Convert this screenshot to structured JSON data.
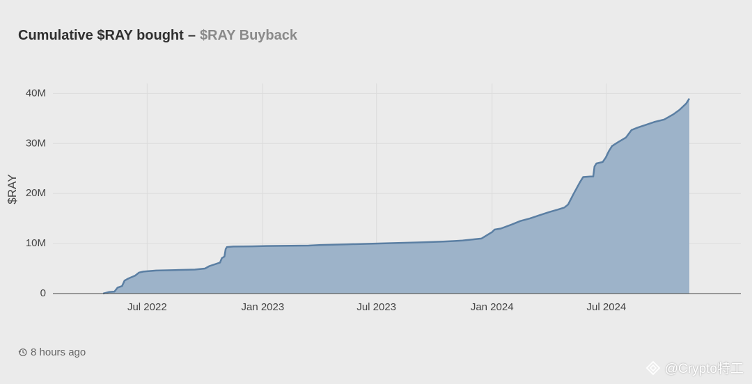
{
  "header": {
    "title": "Cumulative $RAY bought",
    "separator": "–",
    "subtitle": "$RAY Buyback"
  },
  "footer": {
    "updated_text": "8 hours ago",
    "icon": "history-clock-icon"
  },
  "watermark": {
    "text": "@Crypto特工",
    "icon": "diamond-logo-icon"
  },
  "colors": {
    "line": "#5b7fa3",
    "fill": "#9db3c9",
    "grid": "#dcdcdc",
    "axis": "#444444"
  },
  "chart_data": {
    "type": "area",
    "title": "Cumulative $RAY bought",
    "subtitle": "$RAY Buyback",
    "ylabel": "$RAY",
    "xlabel": "",
    "ylim": [
      0,
      42000000
    ],
    "y_ticks": [
      {
        "value": 0,
        "label": "0"
      },
      {
        "value": 10000000,
        "label": "10M"
      },
      {
        "value": 20000000,
        "label": "20M"
      },
      {
        "value": 30000000,
        "label": "30M"
      },
      {
        "value": 40000000,
        "label": "40M"
      }
    ],
    "xlim": [
      "2022-02-01",
      "2025-01-31"
    ],
    "x_ticks": [
      {
        "value": "2022-07-01",
        "label": "Jul 2022"
      },
      {
        "value": "2023-01-01",
        "label": "Jan 2023"
      },
      {
        "value": "2023-07-01",
        "label": "Jul 2023"
      },
      {
        "value": "2024-01-01",
        "label": "Jan 2024"
      },
      {
        "value": "2024-07-01",
        "label": "Jul 2024"
      }
    ],
    "grid": true,
    "legend": "none",
    "series": [
      {
        "x": [
          "2022-04-22",
          "2022-05-01",
          "2022-05-10",
          "2022-05-15",
          "2022-05-22",
          "2022-05-26",
          "2022-06-01",
          "2022-06-12",
          "2022-06-18",
          "2022-06-25",
          "2022-07-15",
          "2022-08-15",
          "2022-09-15",
          "2022-10-01",
          "2022-10-08",
          "2022-10-25",
          "2022-10-28",
          "2022-11-01",
          "2022-11-03",
          "2022-11-05",
          "2022-11-15",
          "2022-12-15",
          "2023-01-01",
          "2023-02-15",
          "2023-03-15",
          "2023-04-01",
          "2023-05-15",
          "2023-06-15",
          "2023-07-15",
          "2023-08-15",
          "2023-09-15",
          "2023-10-15",
          "2023-11-01",
          "2023-11-15",
          "2023-12-15",
          "2024-01-01",
          "2024-01-05",
          "2024-01-15",
          "2024-02-01",
          "2024-02-15",
          "2024-03-01",
          "2024-03-15",
          "2024-04-01",
          "2024-04-15",
          "2024-04-25",
          "2024-05-01",
          "2024-05-10",
          "2024-05-20",
          "2024-05-25",
          "2024-06-05",
          "2024-06-10",
          "2024-06-12",
          "2024-06-15",
          "2024-06-25",
          "2024-06-30",
          "2024-07-05",
          "2024-07-10",
          "2024-07-20",
          "2024-08-01",
          "2024-08-10",
          "2024-08-20",
          "2024-09-01",
          "2024-09-15",
          "2024-10-01",
          "2024-10-15",
          "2024-10-25",
          "2024-11-05",
          "2024-11-10"
        ],
        "values": [
          0,
          300000,
          400000,
          1200000,
          1500000,
          2600000,
          3000000,
          3600000,
          4200000,
          4400000,
          4600000,
          4700000,
          4800000,
          5000000,
          5500000,
          6200000,
          7100000,
          7400000,
          8900000,
          9300000,
          9400000,
          9450000,
          9500000,
          9550000,
          9600000,
          9700000,
          9850000,
          9950000,
          10050000,
          10150000,
          10250000,
          10400000,
          10500000,
          10600000,
          11000000,
          12300000,
          12800000,
          13000000,
          13800000,
          14500000,
          15000000,
          15600000,
          16300000,
          16800000,
          17200000,
          17800000,
          20000000,
          22300000,
          23300000,
          23400000,
          23400000,
          25400000,
          26000000,
          26300000,
          27200000,
          28500000,
          29500000,
          30300000,
          31200000,
          32700000,
          33200000,
          33700000,
          34300000,
          34800000,
          35800000,
          36700000,
          38000000,
          39000000
        ]
      }
    ]
  }
}
